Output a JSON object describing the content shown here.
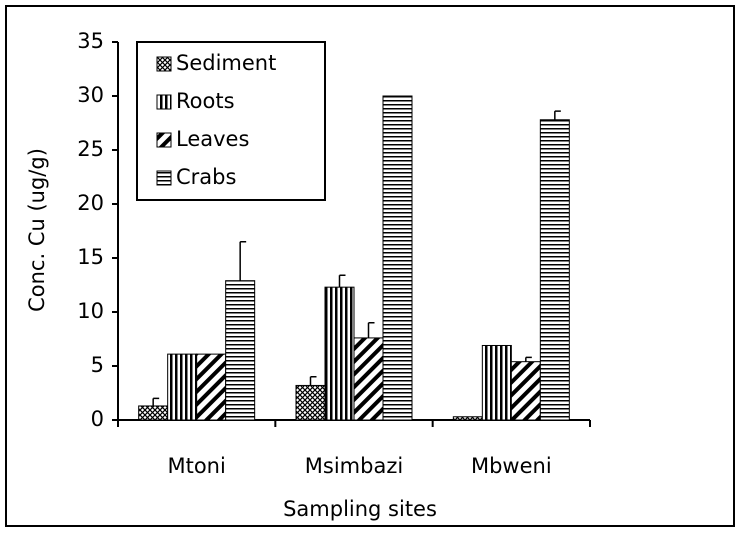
{
  "chart_data": {
    "type": "bar",
    "x_label": "Sampling sites",
    "y_label": "Conc. Cu (ug/g)",
    "categories": [
      "Mtoni",
      "Msimbazi",
      "Mbweni"
    ],
    "series": [
      {
        "name": "Sediment",
        "color": "#000000",
        "pattern": "crosshatch",
        "values": [
          1.3,
          3.2,
          0.3
        ],
        "errors": [
          0.7,
          0.8,
          null
        ]
      },
      {
        "name": "Roots",
        "color": "#000000",
        "pattern": "vertical",
        "values": [
          6.1,
          12.3,
          6.9
        ],
        "errors": [
          null,
          1.1,
          null
        ]
      },
      {
        "name": "Leaves",
        "color": "#000000",
        "pattern": "diagonal",
        "values": [
          6.1,
          7.6,
          5.4
        ],
        "errors": [
          null,
          1.4,
          0.4
        ]
      },
      {
        "name": "Crabs",
        "color": "#000000",
        "pattern": "horizontal",
        "values": [
          12.9,
          30.0,
          27.8
        ],
        "errors": [
          3.6,
          null,
          0.8
        ]
      }
    ],
    "ylim": [
      0,
      35
    ],
    "yticks": [
      0,
      5,
      10,
      15,
      20,
      25,
      30,
      35
    ],
    "legend": "upper left"
  }
}
